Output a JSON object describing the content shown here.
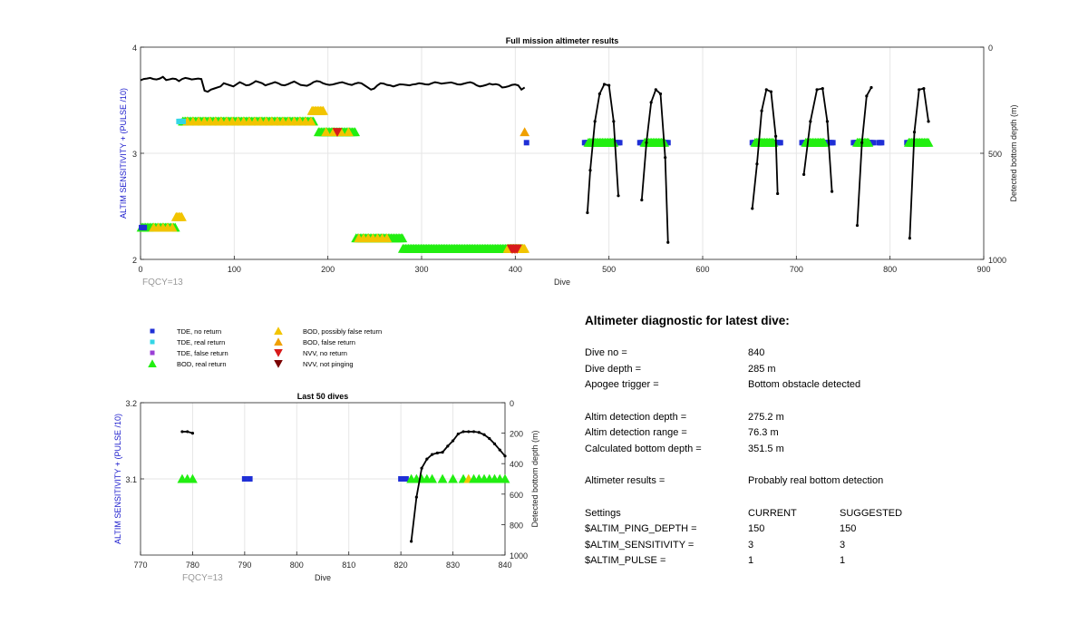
{
  "colors": {
    "tde_no_return": "#1f2fd6",
    "tde_real_return": "#33d6e6",
    "tde_false_return": "#9b3fd6",
    "bod_real_return": "#22ee11",
    "bod_possibly_false": "#f2c400",
    "bod_false_return": "#f0a000",
    "nvv_no_return": "#d81b1b",
    "nvv_not_pinging": "#7a0000",
    "axis_left": "#1a1acc",
    "depth_line": "#000000",
    "fqcy_text": "#999999"
  },
  "legend": {
    "items": [
      {
        "label": "TDE, no return",
        "marker": "square",
        "color": "#1f2fd6"
      },
      {
        "label": "TDE, real return",
        "marker": "square",
        "color": "#33d6e6"
      },
      {
        "label": "TDE, false return",
        "marker": "square",
        "color": "#9b3fd6"
      },
      {
        "label": "BOD, real return",
        "marker": "triangle-up",
        "color": "#22ee11"
      },
      {
        "label": "BOD, possibly false return",
        "marker": "triangle-up",
        "color": "#f2c400"
      },
      {
        "label": "BOD, false return",
        "marker": "triangle-up",
        "color": "#f0a000"
      },
      {
        "label": "NVV, no return",
        "marker": "triangle-down",
        "color": "#d81b1b"
      },
      {
        "label": "NVV, not pinging",
        "marker": "triangle-down",
        "color": "#7a0000"
      }
    ]
  },
  "chart_data": [
    {
      "type": "scatter",
      "title": "Full mission altimeter results",
      "xlabel": "Dive",
      "ylabel_left": "ALTIM SENSITIVITY + (PULSE /10)",
      "ylabel_right": "Detected bottom depth (m)",
      "xlim": [
        0,
        900
      ],
      "ylim_left": [
        2,
        4
      ],
      "ylim_right": [
        0,
        1000
      ],
      "right_axis_reversed": true,
      "xticks": [
        0,
        100,
        200,
        300,
        400,
        500,
        600,
        700,
        800,
        900
      ],
      "yticks_left": [
        2,
        3,
        4
      ],
      "yticks_right": [
        0,
        500,
        1000
      ],
      "grid": true,
      "annotation": "FQCY=13",
      "segments": [
        {
          "kind": "bod_real",
          "level": 2.3,
          "from": 1,
          "to": 38
        },
        {
          "kind": "bod_possibly_false",
          "level": 2.3,
          "from": 14,
          "to": 38,
          "step": 5
        },
        {
          "kind": "tde_no_return",
          "level": 2.3,
          "from": 1,
          "to": 4
        },
        {
          "kind": "bod_possibly_false",
          "level": 2.4,
          "from": 38,
          "to": 44
        },
        {
          "kind": "bod_real",
          "level": 3.3,
          "from": 45,
          "to": 185
        },
        {
          "kind": "bod_possibly_false",
          "level": 3.3,
          "from": 50,
          "to": 185,
          "step": 6
        },
        {
          "kind": "tde_real_return",
          "level": 3.3,
          "from": 41,
          "to": 46
        },
        {
          "kind": "bod_possibly_false",
          "level": 3.4,
          "from": 183,
          "to": 195
        },
        {
          "kind": "bod_real",
          "level": 3.2,
          "from": 190,
          "to": 230
        },
        {
          "kind": "bod_possibly_false",
          "level": 3.2,
          "from": 198,
          "to": 222,
          "step": 8
        },
        {
          "kind": "nvv_no_return",
          "level": 3.2,
          "from": 210,
          "to": 210
        },
        {
          "kind": "bod_real",
          "level": 2.2,
          "from": 230,
          "to": 280
        },
        {
          "kind": "bod_possibly_false",
          "level": 2.2,
          "from": 233,
          "to": 265,
          "step": 5
        },
        {
          "kind": "bod_real",
          "level": 2.1,
          "from": 280,
          "to": 408
        },
        {
          "kind": "bod_possibly_false",
          "level": 2.1,
          "from": 392,
          "to": 410
        },
        {
          "kind": "nvv_no_return",
          "level": 2.1,
          "from": 396,
          "to": 402
        },
        {
          "kind": "bod_false_return",
          "level": 3.2,
          "from": 410,
          "to": 410
        },
        {
          "kind": "tde_no_return",
          "level": 3.1,
          "from": 412,
          "to": 412
        },
        {
          "kind": "tde_no_return",
          "level": 3.1,
          "from": 474,
          "to": 512
        },
        {
          "kind": "bod_real",
          "level": 3.1,
          "from": 478,
          "to": 505
        },
        {
          "kind": "tde_no_return",
          "level": 3.1,
          "from": 533,
          "to": 563
        },
        {
          "kind": "bod_real",
          "level": 3.1,
          "from": 538,
          "to": 560
        },
        {
          "kind": "tde_no_return",
          "level": 3.1,
          "from": 653,
          "to": 683
        },
        {
          "kind": "bod_real",
          "level": 3.1,
          "from": 656,
          "to": 676
        },
        {
          "kind": "tde_no_return",
          "level": 3.1,
          "from": 706,
          "to": 740
        },
        {
          "kind": "bod_real",
          "level": 3.1,
          "from": 710,
          "to": 730
        },
        {
          "kind": "tde_no_return",
          "level": 3.1,
          "from": 761,
          "to": 783
        },
        {
          "kind": "bod_real",
          "level": 3.1,
          "from": 765,
          "to": 778
        },
        {
          "kind": "tde_no_return",
          "level": 3.1,
          "from": 788,
          "to": 792
        },
        {
          "kind": "tde_no_return",
          "level": 3.1,
          "from": 818,
          "to": 826
        },
        {
          "kind": "bod_real",
          "level": 3.1,
          "from": 820,
          "to": 841
        }
      ],
      "depth_series": {
        "flat": {
          "from": 0,
          "to": 410,
          "depths": [
            156,
            150,
            148,
            145,
            150,
            152,
            148,
            140,
            155,
            152,
            148,
            150,
            160,
            150,
            145,
            148,
            152,
            150,
            148,
            150,
            205,
            210,
            200,
            195,
            190,
            185,
            170,
            175,
            180,
            185,
            175,
            165,
            172,
            180,
            178,
            170,
            160,
            165,
            170,
            180,
            175,
            170,
            165,
            170,
            178,
            180,
            175,
            168,
            162,
            170,
            178,
            180,
            182,
            175,
            165,
            160,
            162,
            170,
            175,
            178,
            176,
            172,
            168,
            165,
            170,
            175,
            178,
            172,
            168,
            170,
            180,
            190,
            200,
            195,
            180,
            170,
            172,
            178,
            180,
            185,
            180,
            175,
            176,
            178,
            180,
            176,
            174,
            170,
            172,
            175,
            176,
            170,
            165,
            168,
            172,
            170,
            168,
            166,
            170,
            175,
            176,
            172,
            168,
            165,
            170,
            180,
            185,
            182,
            178,
            172,
            176,
            174,
            178,
            190,
            188,
            184,
            178,
            176,
            180,
            200,
            190
          ]
        },
        "arcs": [
          {
            "x": [
              477,
              480,
              485,
              490,
              495,
              500,
              505,
              510
            ],
            "depths": [
              780,
              580,
              350,
              220,
              175,
              180,
              350,
              700
            ]
          },
          {
            "x": [
              535,
              540,
              545,
              550,
              555,
              560,
              563
            ],
            "depths": [
              720,
              450,
              260,
              200,
              220,
              520,
              920
            ]
          },
          {
            "x": [
              653,
              658,
              663,
              668,
              673,
              678,
              680
            ],
            "depths": [
              760,
              550,
              300,
              200,
              210,
              420,
              690
            ]
          },
          {
            "x": [
              708,
              715,
              722,
              728,
              733,
              738
            ],
            "depths": [
              600,
              350,
              200,
              195,
              350,
              680
            ]
          },
          {
            "x": [
              765,
              770,
              775,
              780
            ],
            "depths": [
              840,
              450,
              230,
              190
            ]
          },
          {
            "x": [
              821,
              826,
              831,
              836,
              841
            ],
            "depths": [
              900,
              400,
              200,
              195,
              350
            ]
          }
        ]
      }
    },
    {
      "type": "scatter",
      "title": "Last 50 dives",
      "xlabel": "Dive",
      "ylabel_left": "ALTIM SENSITIVITY + (PULSE /10)",
      "ylabel_right": "Detected bottom depth (m)",
      "xlim": [
        770,
        840
      ],
      "ylim_left": [
        3.0,
        3.2
      ],
      "ylim_right": [
        0,
        1000
      ],
      "right_axis_reversed": true,
      "xticks": [
        770,
        780,
        790,
        800,
        810,
        820,
        830,
        840
      ],
      "yticks_left": [
        3.1,
        3.2
      ],
      "yticks_right": [
        0,
        200,
        400,
        600,
        800,
        1000
      ],
      "grid": true,
      "annotation": "FQCY=13",
      "points": [
        {
          "dive": 778,
          "kind": "bod_real",
          "level": 3.1
        },
        {
          "dive": 779,
          "kind": "bod_real",
          "level": 3.1
        },
        {
          "dive": 780,
          "kind": "bod_real",
          "level": 3.1
        },
        {
          "dive": 790,
          "kind": "tde_no_return",
          "level": 3.1
        },
        {
          "dive": 791,
          "kind": "tde_no_return",
          "level": 3.1
        },
        {
          "dive": 820,
          "kind": "tde_no_return",
          "level": 3.1
        },
        {
          "dive": 821,
          "kind": "tde_no_return",
          "level": 3.1
        },
        {
          "dive": 822,
          "kind": "bod_real",
          "level": 3.1
        },
        {
          "dive": 823,
          "kind": "bod_real",
          "level": 3.1
        },
        {
          "dive": 824,
          "kind": "bod_real",
          "level": 3.1
        },
        {
          "dive": 825,
          "kind": "bod_real",
          "level": 3.1
        },
        {
          "dive": 826,
          "kind": "bod_real",
          "level": 3.1
        },
        {
          "dive": 828,
          "kind": "bod_real",
          "level": 3.1
        },
        {
          "dive": 830,
          "kind": "bod_real",
          "level": 3.1
        },
        {
          "dive": 832,
          "kind": "bod_real",
          "level": 3.1
        },
        {
          "dive": 833,
          "kind": "bod_possibly_false",
          "level": 3.1
        },
        {
          "dive": 834,
          "kind": "bod_real",
          "level": 3.1
        },
        {
          "dive": 835,
          "kind": "bod_real",
          "level": 3.1
        },
        {
          "dive": 836,
          "kind": "bod_real",
          "level": 3.1
        },
        {
          "dive": 837,
          "kind": "bod_real",
          "level": 3.1
        },
        {
          "dive": 838,
          "kind": "bod_real",
          "level": 3.1
        },
        {
          "dive": 839,
          "kind": "bod_real",
          "level": 3.1
        },
        {
          "dive": 840,
          "kind": "bod_real",
          "level": 3.1
        }
      ],
      "depth_series": [
        {
          "x": [
            778,
            779,
            780
          ],
          "depths": [
            190,
            190,
            200
          ]
        },
        {
          "x": [
            822,
            823,
            824,
            825,
            826,
            827,
            828,
            829,
            830,
            831,
            832,
            833,
            834,
            835,
            836,
            837,
            838,
            839,
            840
          ],
          "depths": [
            910,
            620,
            430,
            370,
            340,
            330,
            325,
            285,
            250,
            205,
            190,
            190,
            190,
            195,
            210,
            235,
            270,
            310,
            350
          ]
        }
      ]
    }
  ],
  "diagnostic": {
    "title": "Altimeter diagnostic for latest dive:",
    "dive_no_label": "Dive no =",
    "dive_no": "840",
    "dive_depth_label": "Dive depth =",
    "dive_depth": "285 m",
    "apogee_label": "Apogee trigger =",
    "apogee": "Bottom obstacle detected",
    "altim_det_depth_label": "Altim detection depth =",
    "altim_det_depth": "275.2 m",
    "altim_det_range_label": "Altim detection range =",
    "altim_det_range": "76.3 m",
    "calc_bottom_label": "Calculated bottom depth =",
    "calc_bottom": "351.5 m",
    "results_label": "Altimeter results =",
    "results": "Probably real bottom detection",
    "settings_label": "Settings",
    "current_label": "CURRENT",
    "suggested_label": "SUGGESTED",
    "settings": [
      {
        "name": "$ALTIM_PING_DEPTH =",
        "current": "150",
        "suggested": "150"
      },
      {
        "name": "$ALTIM_SENSITIVITY =",
        "current": "3",
        "suggested": "3"
      },
      {
        "name": "$ALTIM_PULSE =",
        "current": "1",
        "suggested": "1"
      }
    ]
  }
}
